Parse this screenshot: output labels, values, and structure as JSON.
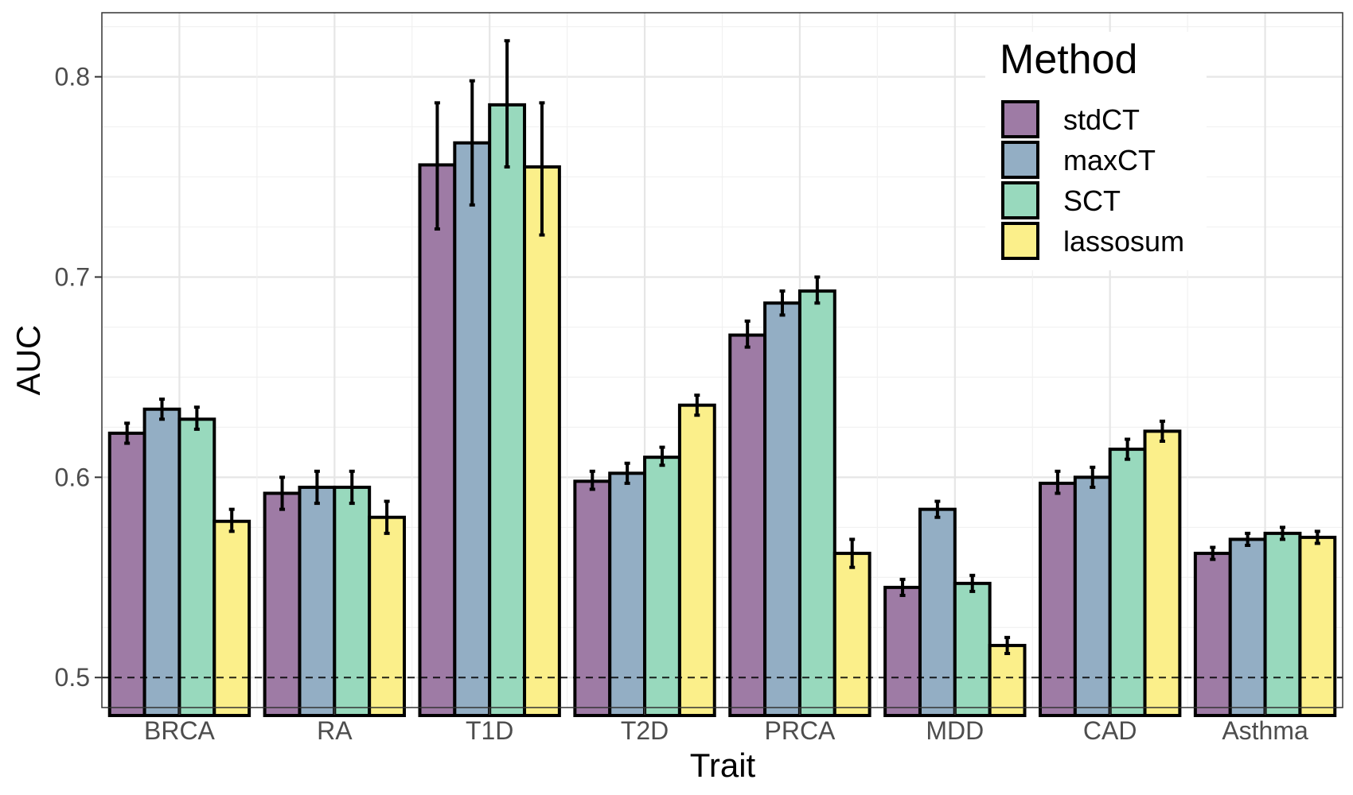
{
  "chart_data": {
    "type": "bar",
    "xlabel": "Trait",
    "ylabel": "AUC",
    "categories": [
      "BRCA",
      "RA",
      "T1D",
      "T2D",
      "PRCA",
      "MDD",
      "CAD",
      "Asthma"
    ],
    "ylim": [
      0.485,
      0.832
    ],
    "yticks": [
      0.5,
      0.6,
      0.7,
      0.8
    ],
    "ytick_labels": [
      "0.5",
      "0.6",
      "0.7",
      "0.8"
    ],
    "reference_line": {
      "y": 0.5,
      "style": "dashed"
    },
    "grid": true,
    "legend": {
      "title": "Method",
      "position": "top-right"
    },
    "series": [
      {
        "name": "stdCT",
        "color": "#9e7ba5",
        "values": [
          0.622,
          0.592,
          0.756,
          0.598,
          0.671,
          0.545,
          0.597,
          0.562
        ],
        "err_low": [
          0.617,
          0.584,
          0.724,
          0.594,
          0.665,
          0.541,
          0.592,
          0.559
        ],
        "err_high": [
          0.627,
          0.6,
          0.787,
          0.603,
          0.678,
          0.549,
          0.603,
          0.565
        ]
      },
      {
        "name": "maxCT",
        "color": "#93aec4",
        "values": [
          0.634,
          0.595,
          0.767,
          0.602,
          0.687,
          0.584,
          0.6,
          0.569
        ],
        "err_low": [
          0.629,
          0.587,
          0.736,
          0.597,
          0.681,
          0.58,
          0.595,
          0.566
        ],
        "err_high": [
          0.639,
          0.603,
          0.798,
          0.607,
          0.693,
          0.588,
          0.605,
          0.572
        ]
      },
      {
        "name": "SCT",
        "color": "#98d9bd",
        "values": [
          0.629,
          0.595,
          0.786,
          0.61,
          0.693,
          0.547,
          0.614,
          0.572
        ],
        "err_low": [
          0.624,
          0.587,
          0.755,
          0.606,
          0.687,
          0.543,
          0.609,
          0.569
        ],
        "err_high": [
          0.635,
          0.603,
          0.818,
          0.615,
          0.7,
          0.551,
          0.619,
          0.575
        ]
      },
      {
        "name": "lassosum",
        "color": "#fbef8a",
        "values": [
          0.578,
          0.58,
          0.755,
          0.636,
          0.562,
          0.516,
          0.623,
          0.57
        ],
        "err_low": [
          0.573,
          0.572,
          0.721,
          0.631,
          0.555,
          0.512,
          0.618,
          0.567
        ],
        "err_high": [
          0.584,
          0.588,
          0.787,
          0.641,
          0.569,
          0.52,
          0.628,
          0.573
        ]
      }
    ]
  }
}
